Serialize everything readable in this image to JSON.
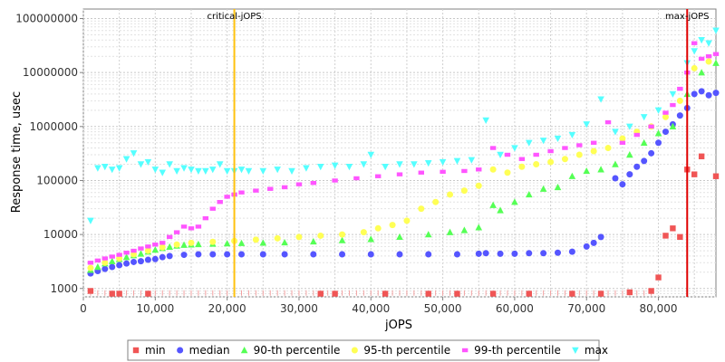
{
  "chart_data": {
    "type": "scatter",
    "title": "",
    "xlabel": "jOPS",
    "ylabel": "Response time, usec",
    "yscale": "log",
    "xlim": [
      0,
      88000
    ],
    "ylim": [
      700,
      150000000
    ],
    "grid": true,
    "legend": "bottom",
    "x_ticks": [
      {
        "value": 0,
        "label": "0"
      },
      {
        "value": 10000,
        "label": "10,000"
      },
      {
        "value": 20000,
        "label": "20,000"
      },
      {
        "value": 30000,
        "label": "30,000"
      },
      {
        "value": 40000,
        "label": "40,000"
      },
      {
        "value": 50000,
        "label": "50,000"
      },
      {
        "value": 60000,
        "label": "60,000"
      },
      {
        "value": 70000,
        "label": "70,000"
      },
      {
        "value": 80000,
        "label": "80,000"
      }
    ],
    "y_ticks": [
      {
        "value": 1000,
        "label": "1000"
      },
      {
        "value": 10000,
        "label": "10000"
      },
      {
        "value": 100000,
        "label": "100000"
      },
      {
        "value": 1000000,
        "label": "1000000"
      },
      {
        "value": 10000000,
        "label": "10000000"
      },
      {
        "value": 100000000,
        "label": "100000000"
      }
    ],
    "markers": [
      {
        "label": "critical-jOPS",
        "x": 21000,
        "color": "#ffc20e"
      },
      {
        "label": "max-jOPS",
        "x": 84000,
        "color": "#e00000"
      }
    ],
    "series": [
      {
        "name": "min",
        "shape": "square",
        "color": "#f05555",
        "x": [
          1000,
          4000,
          5000,
          9000,
          33000,
          35000,
          42000,
          48000,
          52000,
          57000,
          62000,
          68000,
          72000,
          76000,
          79000,
          80000,
          81000,
          82000,
          83000,
          84000,
          85000,
          86000,
          88000
        ],
        "y": [
          900,
          800,
          800,
          800,
          800,
          800,
          800,
          800,
          800,
          800,
          800,
          800,
          800,
          850,
          900,
          1600,
          9500,
          13000,
          9000,
          160000,
          130000,
          280000,
          120000
        ]
      },
      {
        "name": "median",
        "shape": "circle",
        "color": "#5555ff",
        "x": [
          1000,
          2000,
          3000,
          4000,
          5000,
          6000,
          7000,
          8000,
          9000,
          10000,
          11000,
          12000,
          14000,
          16000,
          18000,
          20000,
          22000,
          25000,
          28000,
          32000,
          36000,
          40000,
          44000,
          48000,
          52000,
          55000,
          56000,
          58000,
          60000,
          62000,
          64000,
          66000,
          68000,
          70000,
          71000,
          72000,
          74000,
          75000,
          76000,
          77000,
          78000,
          79000,
          80000,
          81000,
          82000,
          83000,
          84000,
          85000,
          86000,
          87000,
          88000
        ],
        "y": [
          1900,
          2100,
          2300,
          2500,
          2700,
          2900,
          3100,
          3200,
          3400,
          3500,
          3800,
          4000,
          4200,
          4300,
          4300,
          4300,
          4300,
          4300,
          4300,
          4300,
          4300,
          4300,
          4300,
          4300,
          4300,
          4400,
          4500,
          4400,
          4400,
          4500,
          4500,
          4600,
          4800,
          6000,
          7000,
          9000,
          110000,
          85000,
          130000,
          180000,
          230000,
          320000,
          500000,
          800000,
          1100000,
          1600000,
          2200000,
          4000000,
          4500000,
          3800000,
          4200000
        ]
      },
      {
        "name": "90-th percentile",
        "shape": "triangle-up",
        "color": "#55ff55",
        "x": [
          1000,
          2000,
          3000,
          4000,
          5000,
          6000,
          7000,
          8000,
          9000,
          10000,
          11000,
          12000,
          13000,
          14000,
          15000,
          16000,
          18000,
          20000,
          22000,
          25000,
          28000,
          32000,
          36000,
          40000,
          44000,
          48000,
          51000,
          53000,
          55000,
          57000,
          58000,
          60000,
          62000,
          64000,
          66000,
          68000,
          70000,
          72000,
          74000,
          76000,
          78000,
          80000,
          82000,
          84000,
          86000,
          88000
        ],
        "y": [
          2200,
          2500,
          2900,
          3200,
          3500,
          3800,
          4100,
          4400,
          4800,
          5200,
          5600,
          5900,
          6200,
          6400,
          6500,
          6600,
          6700,
          6800,
          6900,
          7000,
          7100,
          7400,
          7800,
          8200,
          9000,
          10000,
          11000,
          12000,
          13500,
          35000,
          28000,
          40000,
          55000,
          70000,
          75000,
          120000,
          150000,
          160000,
          200000,
          300000,
          500000,
          750000,
          1000000,
          4000000,
          10000000,
          15000000
        ]
      },
      {
        "name": "95-th percentile",
        "shape": "circle",
        "color": "#ffff55",
        "x": [
          1000,
          3000,
          5000,
          7000,
          9000,
          11000,
          13000,
          15000,
          18000,
          21000,
          24000,
          27000,
          30000,
          33000,
          36000,
          39000,
          41000,
          43000,
          45000,
          47000,
          49000,
          51000,
          53000,
          55000,
          57000,
          59000,
          61000,
          63000,
          65000,
          67000,
          69000,
          71000,
          73000,
          75000,
          77000,
          79000,
          81000,
          83000,
          85000,
          87000
        ],
        "y": [
          2400,
          3000,
          3600,
          4300,
          5000,
          5800,
          6500,
          7000,
          7300,
          7600,
          8000,
          8500,
          9000,
          9500,
          10000,
          11000,
          13000,
          15000,
          18000,
          30000,
          40000,
          55000,
          65000,
          80000,
          160000,
          140000,
          180000,
          200000,
          220000,
          250000,
          300000,
          350000,
          400000,
          600000,
          800000,
          1000000,
          1500000,
          3000000,
          12000000,
          16000000
        ]
      },
      {
        "name": "99-th percentile",
        "shape": "diamond",
        "color": "#ff55ff",
        "x": [
          1000,
          2000,
          3000,
          4000,
          5000,
          6000,
          7000,
          8000,
          9000,
          10000,
          11000,
          12000,
          13000,
          14000,
          15000,
          16000,
          17000,
          18000,
          19000,
          20000,
          21000,
          22000,
          24000,
          26000,
          28000,
          30000,
          32000,
          35000,
          38000,
          41000,
          44000,
          47000,
          50000,
          53000,
          55000,
          57000,
          59000,
          61000,
          63000,
          65000,
          67000,
          69000,
          71000,
          73000,
          75000,
          77000,
          79000,
          81000,
          82000,
          83000,
          84000,
          85000,
          86000,
          87000,
          88000
        ],
        "y": [
          3000,
          3300,
          3600,
          3900,
          4200,
          4600,
          5000,
          5500,
          6000,
          6500,
          7000,
          9000,
          11000,
          14000,
          13000,
          14000,
          20000,
          30000,
          40000,
          50000,
          55000,
          60000,
          65000,
          70000,
          75000,
          85000,
          90000,
          100000,
          110000,
          120000,
          130000,
          140000,
          145000,
          150000,
          160000,
          400000,
          300000,
          250000,
          300000,
          350000,
          400000,
          450000,
          500000,
          1200000,
          500000,
          700000,
          1000000,
          1800000,
          2500000,
          5000000,
          10000000,
          35000000,
          18000000,
          20000000,
          22000000
        ]
      },
      {
        "name": "max",
        "shape": "triangle-down",
        "color": "#55ffff",
        "x": [
          1000,
          2000,
          3000,
          4000,
          5000,
          6000,
          7000,
          8000,
          9000,
          10000,
          11000,
          12000,
          13000,
          14000,
          15000,
          16000,
          17000,
          18000,
          19000,
          20000,
          21000,
          22000,
          23000,
          25000,
          27000,
          29000,
          31000,
          33000,
          35000,
          37000,
          39000,
          40000,
          42000,
          44000,
          46000,
          48000,
          50000,
          52000,
          54000,
          56000,
          58000,
          60000,
          62000,
          64000,
          66000,
          68000,
          70000,
          72000,
          74000,
          76000,
          78000,
          80000,
          82000,
          84000,
          85000,
          86000,
          87000,
          88000
        ],
        "y": [
          18000,
          170000,
          180000,
          160000,
          170000,
          250000,
          320000,
          200000,
          220000,
          160000,
          140000,
          200000,
          150000,
          170000,
          160000,
          150000,
          150000,
          160000,
          200000,
          150000,
          150000,
          160000,
          150000,
          150000,
          160000,
          150000,
          170000,
          180000,
          190000,
          180000,
          200000,
          300000,
          180000,
          200000,
          200000,
          210000,
          220000,
          230000,
          240000,
          1300000,
          300000,
          400000,
          500000,
          550000,
          600000,
          700000,
          1100000,
          3200000,
          800000,
          1000000,
          1500000,
          2000000,
          4000000,
          15000000,
          25000000,
          40000000,
          35000000,
          60000000
        ]
      }
    ]
  }
}
